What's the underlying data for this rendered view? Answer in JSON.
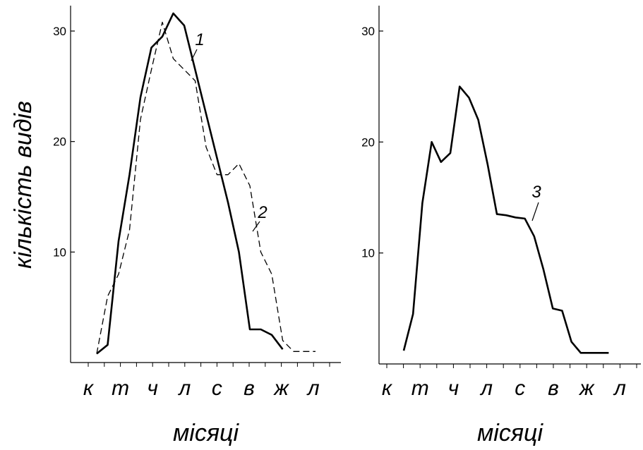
{
  "ylabel": "кількість видів",
  "chart_data": [
    {
      "type": "line",
      "xlabel": "місяці",
      "categories": [
        "к",
        "т",
        "ч",
        "л",
        "с",
        "в",
        "ж",
        "л"
      ],
      "yticks": [
        10,
        20,
        30
      ],
      "ylim": [
        0,
        32
      ],
      "grid": false,
      "series": [
        {
          "name": "1",
          "style": "solid",
          "x": [
            0,
            0.5,
            1,
            1.5,
            2,
            2.5,
            3,
            3.5,
            4,
            4.5,
            5,
            5.5,
            6,
            6.5,
            7,
            7.5,
            8,
            8.5
          ],
          "values": [
            0.8,
            1.6,
            11,
            17,
            24,
            28.5,
            29.5,
            31.6,
            30.5,
            26.5,
            22.5,
            18.5,
            14.5,
            10,
            3,
            3,
            2.5,
            1.2
          ]
        },
        {
          "name": "2",
          "style": "dashed",
          "x": [
            0,
            0.5,
            1,
            1.5,
            2,
            2.5,
            3,
            3.5,
            4,
            4.5,
            5,
            5.5,
            6,
            6.5,
            7,
            7.5,
            8,
            8.5,
            9,
            9.5,
            10
          ],
          "values": [
            0.8,
            6,
            8,
            12,
            22,
            26.5,
            30.8,
            27.5,
            26.5,
            25.5,
            19.5,
            17,
            17,
            18,
            16,
            10,
            8,
            2,
            1,
            1,
            1
          ]
        }
      ]
    },
    {
      "type": "line",
      "xlabel": "місяці",
      "categories": [
        "к",
        "т",
        "ч",
        "л",
        "с",
        "в",
        "ж",
        "л"
      ],
      "yticks": [
        10,
        20,
        30
      ],
      "ylim": [
        0,
        32
      ],
      "grid": false,
      "series": [
        {
          "name": "3",
          "style": "solid",
          "x": [
            0,
            0.5,
            1,
            1.5,
            2,
            2.5,
            3,
            3.5,
            4,
            4.5,
            5,
            5.5,
            6,
            6.5,
            7,
            7.5,
            8,
            8.5,
            9,
            9.5,
            10,
            10.5,
            11
          ],
          "values": [
            1.2,
            4.5,
            14.5,
            20,
            18.2,
            19,
            25,
            24,
            22,
            18,
            13.5,
            13.4,
            13.2,
            13.1,
            11.5,
            8.5,
            5,
            4.8,
            2,
            1,
            1,
            1,
            1
          ]
        }
      ]
    }
  ]
}
